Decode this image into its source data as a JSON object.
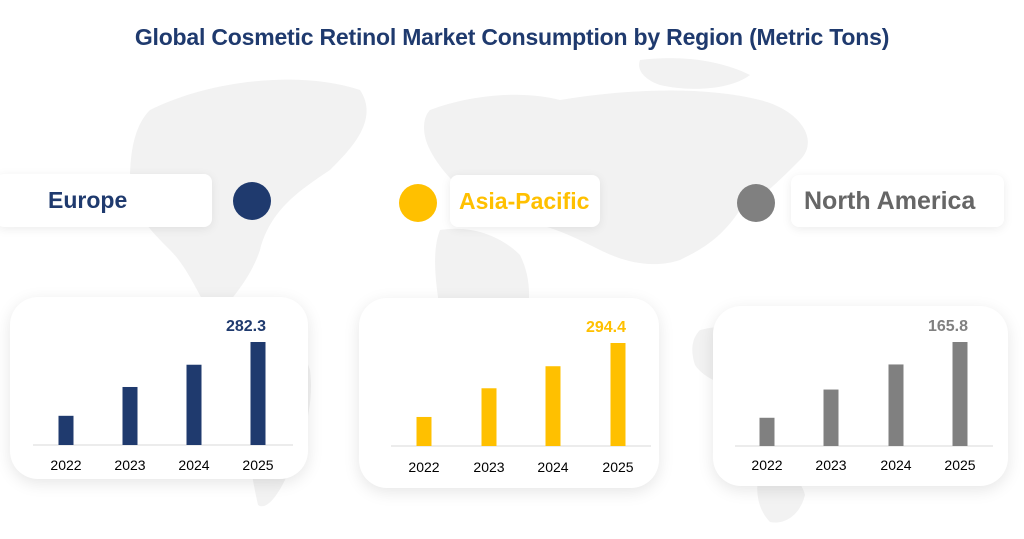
{
  "title": "Global Cosmetic Retinol Market Consumption by Region (Metric Tons)",
  "colors": {
    "title": "#1f3a6e",
    "europe": "#1f3a6e",
    "asia_pacific": "#ffc000",
    "north_america": "#808080",
    "map": "#f2f2f2"
  },
  "chart_data": [
    {
      "type": "bar",
      "region": "Europe",
      "categories": [
        "2022",
        "2023",
        "2024",
        "2025"
      ],
      "values": [
        80.0,
        159.0,
        220.0,
        282.3
      ],
      "value_label": "282.3",
      "color": "#1f3a6e"
    },
    {
      "type": "bar",
      "region": "Asia-Pacific",
      "categories": [
        "2022",
        "2023",
        "2024",
        "2025"
      ],
      "values": [
        83.0,
        165.0,
        228.0,
        294.4
      ],
      "value_label": "294.4",
      "color": "#ffc000"
    },
    {
      "type": "bar",
      "region": "North America",
      "categories": [
        "2022",
        "2023",
        "2024",
        "2025"
      ],
      "values": [
        45.0,
        90.0,
        130.0,
        165.8
      ],
      "value_label": "165.8",
      "color": "#808080"
    }
  ]
}
